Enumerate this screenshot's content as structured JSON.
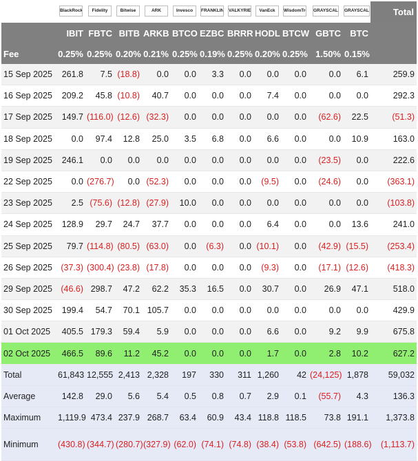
{
  "chart_data": {
    "type": "table",
    "total_header": "Total",
    "fee_label": "Fee",
    "tickers": [
      "IBIT",
      "FBTC",
      "BITB",
      "ARKB",
      "BTCO",
      "EZBC",
      "BRRR",
      "HODL",
      "BTCW",
      "GBTC",
      "BTC"
    ],
    "fees": [
      "0.25%",
      "0.25%",
      "0.20%",
      "0.21%",
      "0.25%",
      "0.19%",
      "0.25%",
      "0.20%",
      "0.25%",
      "1.50%",
      "0.15%"
    ],
    "logos": [
      "BlackRock",
      "Fidelity",
      "Bitwise",
      "ARK",
      "Invesco",
      "FRANKLIN TEMPLETON",
      "VALKYRIE",
      "VanEck",
      "WisdomTree",
      "GRAYSCALE",
      "GRAYSCALE"
    ],
    "rows": [
      {
        "label": "15 Sep 2025",
        "cells": [
          "261.8",
          "7.5",
          "(18.8)",
          "0.0",
          "0.0",
          "3.3",
          "0.0",
          "0.0",
          "0.0",
          "0.0",
          "6.1",
          "259.9"
        ]
      },
      {
        "label": "16 Sep 2025",
        "cells": [
          "209.2",
          "45.8",
          "(10.8)",
          "40.7",
          "0.0",
          "0.0",
          "0.0",
          "7.4",
          "0.0",
          "0.0",
          "0.0",
          "292.3"
        ]
      },
      {
        "label": "17 Sep 2025",
        "cells": [
          "149.7",
          "(116.0)",
          "(12.6)",
          "(32.3)",
          "0.0",
          "0.0",
          "0.0",
          "0.0",
          "0.0",
          "(62.6)",
          "22.5",
          "(51.3)"
        ]
      },
      {
        "label": "18 Sep 2025",
        "cells": [
          "0.0",
          "97.4",
          "12.8",
          "25.0",
          "3.5",
          "6.8",
          "0.0",
          "6.6",
          "0.0",
          "0.0",
          "10.9",
          "163.0"
        ]
      },
      {
        "label": "19 Sep 2025",
        "cells": [
          "246.1",
          "0.0",
          "0.0",
          "0.0",
          "0.0",
          "0.0",
          "0.0",
          "0.0",
          "0.0",
          "(23.5)",
          "0.0",
          "222.6"
        ]
      },
      {
        "label": "22 Sep 2025",
        "cells": [
          "0.0",
          "(276.7)",
          "0.0",
          "(52.3)",
          "0.0",
          "0.0",
          "0.0",
          "(9.5)",
          "0.0",
          "(24.6)",
          "0.0",
          "(363.1)"
        ]
      },
      {
        "label": "23 Sep 2025",
        "cells": [
          "2.5",
          "(75.6)",
          "(12.8)",
          "(27.9)",
          "10.0",
          "0.0",
          "0.0",
          "0.0",
          "0.0",
          "0.0",
          "0.0",
          "(103.8)"
        ]
      },
      {
        "label": "24 Sep 2025",
        "cells": [
          "128.9",
          "29.7",
          "24.7",
          "37.7",
          "0.0",
          "0.0",
          "0.0",
          "6.4",
          "0.0",
          "0.0",
          "13.6",
          "241.0"
        ]
      },
      {
        "label": "25 Sep 2025",
        "cells": [
          "79.7",
          "(114.8)",
          "(80.5)",
          "(63.0)",
          "0.0",
          "(6.3)",
          "0.0",
          "(10.1)",
          "0.0",
          "(42.9)",
          "(15.5)",
          "(253.4)"
        ]
      },
      {
        "label": "26 Sep 2025",
        "cells": [
          "(37.3)",
          "(300.4)",
          "(23.8)",
          "(17.8)",
          "0.0",
          "0.0",
          "0.0",
          "(9.3)",
          "0.0",
          "(17.1)",
          "(12.6)",
          "(418.3)"
        ]
      },
      {
        "label": "29 Sep 2025",
        "cells": [
          "(46.6)",
          "298.7",
          "47.2",
          "62.2",
          "35.3",
          "16.5",
          "0.0",
          "30.7",
          "0.0",
          "26.9",
          "47.1",
          "518.0"
        ]
      },
      {
        "label": "30 Sep 2025",
        "cells": [
          "199.4",
          "54.7",
          "70.1",
          "105.7",
          "0.0",
          "0.0",
          "0.0",
          "0.0",
          "0.0",
          "0.0",
          "0.0",
          "429.9"
        ]
      },
      {
        "label": "01 Oct 2025",
        "cells": [
          "405.5",
          "179.3",
          "59.4",
          "5.9",
          "0.0",
          "0.0",
          "0.0",
          "6.6",
          "0.0",
          "9.2",
          "9.9",
          "675.8"
        ]
      },
      {
        "label": "02 Oct 2025",
        "cells": [
          "466.5",
          "89.6",
          "11.2",
          "45.2",
          "0.0",
          "0.0",
          "0.0",
          "1.7",
          "0.0",
          "2.8",
          "10.2",
          "627.2"
        ],
        "highlight": true
      }
    ],
    "summary": [
      {
        "label": "Total",
        "cells": [
          "61,843",
          "12,555",
          "2,413",
          "2,328",
          "197",
          "330",
          "311",
          "1,260",
          "42",
          "(24,125)",
          "1,878",
          "59,032"
        ]
      },
      {
        "label": "Average",
        "cells": [
          "142.8",
          "29.0",
          "5.6",
          "5.4",
          "0.5",
          "0.8",
          "0.7",
          "2.9",
          "0.1",
          "(55.7)",
          "4.3",
          "136.3"
        ]
      },
      {
        "label": "Maximum",
        "cells": [
          "1,119.9",
          "473.4",
          "237.9",
          "268.7",
          "63.4",
          "60.9",
          "43.4",
          "118.8",
          "118.5",
          "73.8",
          "191.1",
          "1,373.8"
        ]
      },
      {
        "label": "Minimum",
        "cells": [
          "(430.8)",
          "(344.7)",
          "(280.7)",
          "(327.9)",
          "(62.0)",
          "(74.1)",
          "(74.8)",
          "(38.4)",
          "(53.8)",
          "(642.5)",
          "(188.6)",
          "(1,113.7)"
        ]
      }
    ]
  }
}
